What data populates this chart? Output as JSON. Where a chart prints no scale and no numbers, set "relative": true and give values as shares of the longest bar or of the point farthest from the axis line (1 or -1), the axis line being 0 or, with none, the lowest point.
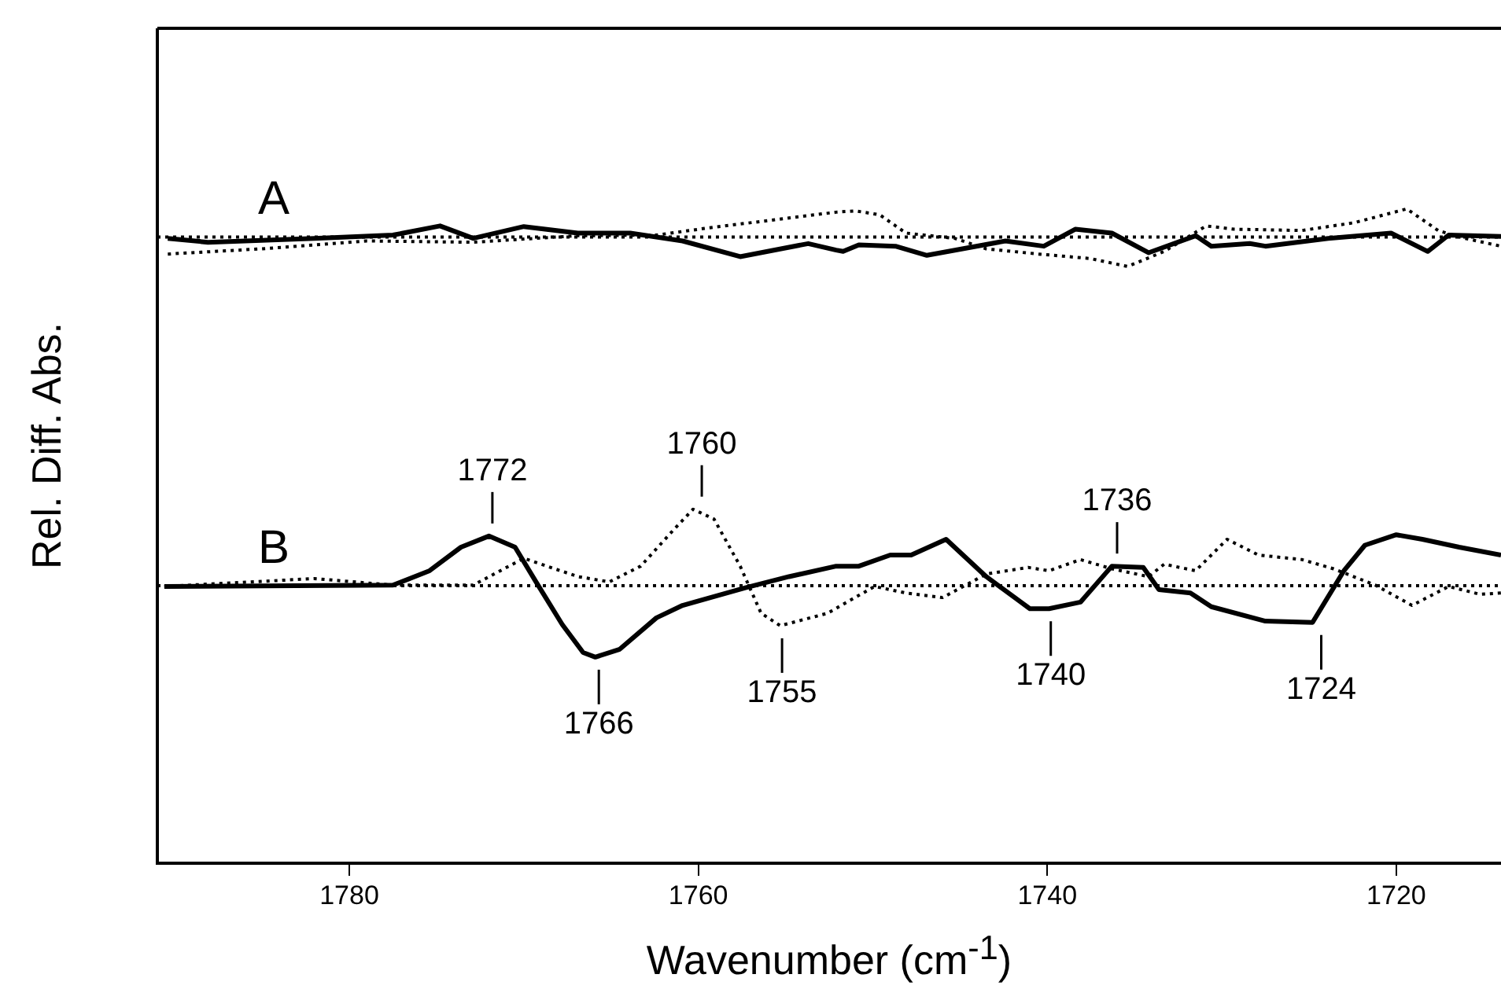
{
  "chart_data": {
    "type": "line",
    "relative": true,
    "xlabel": "Wavenumber (cm$^{-1}$)",
    "ylabel": "Rel. Diff. Abs.",
    "xlim": [
      1791,
      1714
    ],
    "xticks": [
      1780,
      1760,
      1740,
      1720
    ],
    "grid": false,
    "legend": false,
    "marker": "none",
    "series": [
      {
        "color": "#000000",
        "line_style": "dotted",
        "x": [
          1791,
          1714
        ],
        "values": [
          0.957,
          0.957
        ]
      },
      {
        "color": "#000000",
        "line_style": "solid",
        "x": [
          1790.4,
          1788.1,
          1782.0,
          1777.5,
          1774.8,
          1772.9,
          1770.0,
          1766.9,
          1763.9,
          1760.9,
          1757.6,
          1753.7,
          1752.1,
          1751.7,
          1750.8,
          1748.7,
          1746.9,
          1742.4,
          1740.2,
          1738.4,
          1736.3,
          1734.2,
          1731.5,
          1730.6,
          1728.4,
          1727.5,
          1723.9,
          1720.3,
          1718.2,
          1717.0,
          1714.0
        ],
        "values": [
          0.955,
          0.949,
          0.955,
          0.96,
          0.974,
          0.955,
          0.973,
          0.963,
          0.963,
          0.951,
          0.927,
          0.947,
          0.937,
          0.935,
          0.945,
          0.943,
          0.929,
          0.951,
          0.943,
          0.969,
          0.963,
          0.933,
          0.959,
          0.943,
          0.947,
          0.943,
          0.955,
          0.963,
          0.935,
          0.96,
          0.958
        ]
      },
      {
        "color": "#000000",
        "line_style": "dotted",
        "x": [
          1790.4,
          1785.0,
          1779.0,
          1772.9,
          1766.9,
          1762.4,
          1759.4,
          1752.1,
          1751.0,
          1749.6,
          1748.1,
          1745.3,
          1743.5,
          1740.5,
          1737.5,
          1735.4,
          1733.3,
          1730.9,
          1729.3,
          1725.4,
          1722.4,
          1719.4,
          1717.6,
          1716.4,
          1714.0
        ],
        "values": [
          0.931,
          0.939,
          0.951,
          0.949,
          0.959,
          0.96,
          0.971,
          0.995,
          0.997,
          0.991,
          0.963,
          0.955,
          0.939,
          0.931,
          0.924,
          0.912,
          0.935,
          0.974,
          0.969,
          0.967,
          0.979,
          1.0,
          0.967,
          0.957,
          0.943
        ]
      },
      {
        "color": "#000000",
        "line_style": "dotted",
        "x": [
          1791,
          1714
        ],
        "values": [
          0.424,
          0.424
        ]
      },
      {
        "color": "#000000",
        "line_style": "solid",
        "x": [
          1790.6,
          1777.5,
          1775.4,
          1773.6,
          1772.0,
          1770.5,
          1769.3,
          1767.8,
          1766.6,
          1765.9,
          1764.5,
          1762.4,
          1760.9,
          1757.3,
          1754.8,
          1752.1,
          1750.8,
          1749.0,
          1747.8,
          1745.8,
          1743.5,
          1741.0,
          1739.9,
          1738.1,
          1736.3,
          1734.5,
          1733.6,
          1731.8,
          1730.6,
          1727.5,
          1724.8,
          1723.0,
          1721.8,
          1720.0,
          1718.5,
          1716.4,
          1714.0
        ],
        "values": [
          0.423,
          0.425,
          0.447,
          0.483,
          0.5,
          0.483,
          0.43,
          0.365,
          0.322,
          0.315,
          0.327,
          0.375,
          0.394,
          0.421,
          0.438,
          0.454,
          0.454,
          0.471,
          0.471,
          0.495,
          0.438,
          0.389,
          0.389,
          0.399,
          0.454,
          0.452,
          0.418,
          0.413,
          0.392,
          0.37,
          0.368,
          0.447,
          0.486,
          0.502,
          0.495,
          0.483,
          0.471
        ]
      },
      {
        "color": "#000000",
        "line_style": "dotted",
        "x": [
          1790.6,
          1782.0,
          1777.5,
          1772.9,
          1770.0,
          1766.9,
          1765.1,
          1763.3,
          1761.4,
          1760.3,
          1759.1,
          1757.6,
          1756.4,
          1755.3,
          1753.3,
          1752.6,
          1749.9,
          1748.1,
          1746.0,
          1743.5,
          1741.1,
          1739.9,
          1738.1,
          1736.3,
          1734.2,
          1733.3,
          1731.5,
          1729.7,
          1727.9,
          1725.4,
          1723.6,
          1721.2,
          1719.1,
          1717.0,
          1715.2,
          1714.0
        ],
        "values": [
          0.423,
          0.435,
          0.425,
          0.425,
          0.466,
          0.438,
          0.43,
          0.454,
          0.51,
          0.541,
          0.526,
          0.454,
          0.382,
          0.363,
          0.377,
          0.382,
          0.423,
          0.413,
          0.406,
          0.442,
          0.452,
          0.447,
          0.464,
          0.45,
          0.438,
          0.457,
          0.447,
          0.495,
          0.471,
          0.464,
          0.45,
          0.425,
          0.394,
          0.423,
          0.411,
          0.413
        ]
      }
    ],
    "annotations": [
      "A",
      "B",
      {
        "text": "1772",
        "x": 1771.8,
        "y": 0.5
      },
      {
        "text": "1760",
        "x": 1759.8,
        "y": 0.541
      },
      {
        "text": "1766",
        "x": 1765.7,
        "y": 0.315
      },
      {
        "text": "1755",
        "x": 1755.2,
        "y": 0.363
      },
      {
        "text": "1740",
        "x": 1739.8,
        "y": 0.389
      },
      {
        "text": "1736",
        "x": 1736.0,
        "y": 0.454
      },
      {
        "text": "1724",
        "x": 1724.3,
        "y": 0.368
      }
    ]
  }
}
